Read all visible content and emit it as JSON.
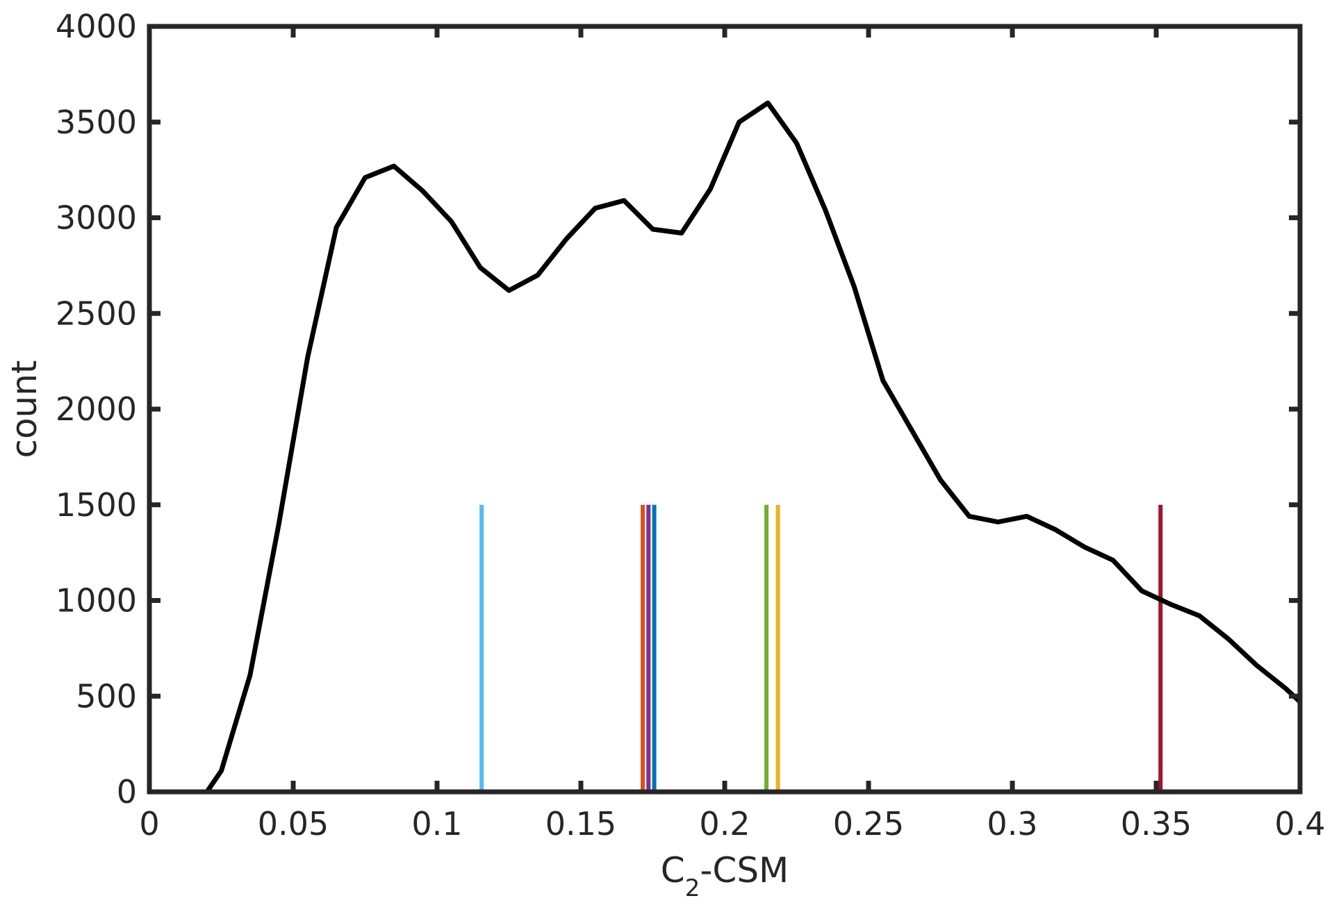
{
  "chart_data": {
    "type": "line",
    "title": "",
    "xlabel": {
      "main": "C",
      "subscript": "2",
      "rest": "-CSM"
    },
    "ylabel": "count",
    "xlim": [
      0,
      0.4
    ],
    "ylim": [
      0,
      4000
    ],
    "x_ticks": [
      0,
      0.05,
      0.1,
      0.15,
      0.2,
      0.25,
      0.3,
      0.35,
      0.4
    ],
    "x_tick_labels": [
      "0",
      "0.05",
      "0.1",
      "0.15",
      "0.2",
      "0.25",
      "0.3",
      "0.35",
      "0.4"
    ],
    "y_ticks": [
      0,
      500,
      1000,
      1500,
      2000,
      2500,
      3000,
      3500,
      4000
    ],
    "y_tick_labels": [
      "0",
      "500",
      "1000",
      "1500",
      "2000",
      "2500",
      "3000",
      "3500",
      "4000"
    ],
    "grid": false,
    "series": [
      {
        "color": "#000000",
        "x": [
          0.02,
          0.025,
          0.035,
          0.045,
          0.055,
          0.065,
          0.075,
          0.085,
          0.095,
          0.105,
          0.115,
          0.125,
          0.135,
          0.145,
          0.155,
          0.165,
          0.175,
          0.185,
          0.195,
          0.205,
          0.215,
          0.225,
          0.235,
          0.245,
          0.255,
          0.265,
          0.275,
          0.285,
          0.295,
          0.305,
          0.315,
          0.325,
          0.335,
          0.345,
          0.355,
          0.365,
          0.375,
          0.385,
          0.395,
          0.4
        ],
        "values": [
          0,
          110,
          610,
          1400,
          2270,
          2950,
          3210,
          3270,
          3140,
          2980,
          2740,
          2620,
          2700,
          2890,
          3050,
          3090,
          2940,
          2920,
          3150,
          3500,
          3600,
          3390,
          3040,
          2640,
          2150,
          1890,
          1630,
          1440,
          1410,
          1440,
          1370,
          1280,
          1210,
          1050,
          980,
          920,
          800,
          660,
          540,
          470
        ]
      }
    ],
    "vertical_markers": [
      {
        "x": 0.1155,
        "ymax": 1500,
        "color": "#4DBEEE"
      },
      {
        "x": 0.1715,
        "ymax": 1500,
        "color": "#D95319"
      },
      {
        "x": 0.1735,
        "ymax": 1500,
        "color": "#7E2F8E"
      },
      {
        "x": 0.1755,
        "ymax": 1500,
        "color": "#0072BD"
      },
      {
        "x": 0.2145,
        "ymax": 1500,
        "color": "#77AC30"
      },
      {
        "x": 0.2185,
        "ymax": 1500,
        "color": "#EDB120"
      },
      {
        "x": 0.3515,
        "ymax": 1500,
        "color": "#A2142F"
      }
    ]
  }
}
